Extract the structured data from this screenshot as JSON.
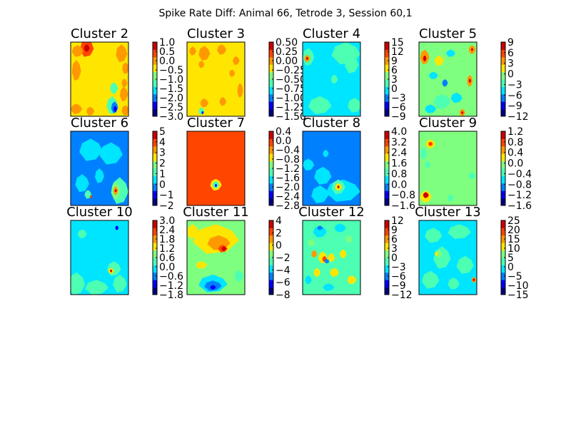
{
  "figure": {
    "title": "Spike Rate Diff: Animal 66, Tetrode 3, Session 60,1"
  },
  "chart_data": [
    {
      "type": "heatmap",
      "title": "Cluster 2",
      "colorbar_ticks": [
        "1.0",
        "0.5",
        "0.0",
        "−0.5",
        "−1.0",
        "−1.5",
        "−2.0",
        "−2.5",
        "−3.0"
      ],
      "background": 6,
      "blobs": [
        {
          "x": 0.28,
          "y": 0.08,
          "rx": 0.12,
          "ry": 0.12,
          "level": 8
        },
        {
          "x": 0.28,
          "y": 0.08,
          "rx": 0.05,
          "ry": 0.05,
          "level": 9
        },
        {
          "x": 0.12,
          "y": 0.12,
          "rx": 0.1,
          "ry": 0.08,
          "level": 7
        },
        {
          "x": 0.1,
          "y": 0.38,
          "rx": 0.08,
          "ry": 0.14,
          "level": 7
        },
        {
          "x": 0.88,
          "y": 0.15,
          "rx": 0.1,
          "ry": 0.12,
          "level": 7
        },
        {
          "x": 0.95,
          "y": 0.35,
          "rx": 0.06,
          "ry": 0.08,
          "level": 7
        },
        {
          "x": 0.92,
          "y": 0.7,
          "rx": 0.07,
          "ry": 0.1,
          "level": 7
        },
        {
          "x": 0.95,
          "y": 0.92,
          "rx": 0.07,
          "ry": 0.07,
          "level": 7
        },
        {
          "x": 0.1,
          "y": 0.9,
          "rx": 0.1,
          "ry": 0.07,
          "level": 7
        },
        {
          "x": 0.34,
          "y": 0.93,
          "rx": 0.07,
          "ry": 0.06,
          "level": 7
        },
        {
          "x": 0.93,
          "y": 0.55,
          "rx": 0.05,
          "ry": 0.06,
          "level": 7
        },
        {
          "x": 0.75,
          "y": 0.62,
          "rx": 0.07,
          "ry": 0.08,
          "level": 4
        },
        {
          "x": 0.72,
          "y": 0.85,
          "rx": 0.1,
          "ry": 0.12,
          "level": 4
        },
        {
          "x": 0.76,
          "y": 0.88,
          "rx": 0.06,
          "ry": 0.08,
          "level": 2
        },
        {
          "x": 0.77,
          "y": 0.9,
          "rx": 0.03,
          "ry": 0.04,
          "level": 1
        }
      ]
    },
    {
      "type": "heatmap",
      "title": "Cluster 3",
      "colorbar_ticks": [
        "0.50",
        "0.25",
        "0.00",
        "−0.25",
        "−0.50",
        "−0.75",
        "−1.00",
        "−1.25",
        "−1.50"
      ],
      "background": 6,
      "blobs": [
        {
          "x": 0.3,
          "y": 0.15,
          "rx": 0.1,
          "ry": 0.1,
          "level": 7
        },
        {
          "x": 0.1,
          "y": 0.12,
          "rx": 0.06,
          "ry": 0.06,
          "level": 7
        },
        {
          "x": 0.25,
          "y": 0.3,
          "rx": 0.05,
          "ry": 0.05,
          "level": 7
        },
        {
          "x": 0.6,
          "y": 0.1,
          "rx": 0.08,
          "ry": 0.07,
          "level": 7
        },
        {
          "x": 0.85,
          "y": 0.25,
          "rx": 0.06,
          "ry": 0.06,
          "level": 7
        },
        {
          "x": 0.78,
          "y": 0.42,
          "rx": 0.05,
          "ry": 0.05,
          "level": 7
        },
        {
          "x": 0.62,
          "y": 0.8,
          "rx": 0.06,
          "ry": 0.06,
          "level": 7
        },
        {
          "x": 0.92,
          "y": 0.65,
          "rx": 0.05,
          "ry": 0.1,
          "level": 7
        },
        {
          "x": 0.3,
          "y": 0.82,
          "rx": 0.07,
          "ry": 0.06,
          "level": 7
        },
        {
          "x": 0.25,
          "y": 0.93,
          "rx": 0.05,
          "ry": 0.05,
          "level": 4
        },
        {
          "x": 0.27,
          "y": 0.95,
          "rx": 0.02,
          "ry": 0.02,
          "level": 1
        }
      ]
    },
    {
      "type": "heatmap",
      "title": "Cluster 4",
      "colorbar_ticks": [
        "15",
        "12",
        "9",
        "6",
        "3",
        "0",
        "−3",
        "−6",
        "−9"
      ],
      "background": 3,
      "blobs": [
        {
          "x": 0.1,
          "y": 0.2,
          "rx": 0.1,
          "ry": 0.12,
          "level": 4
        },
        {
          "x": 0.08,
          "y": 0.22,
          "rx": 0.05,
          "ry": 0.05,
          "level": 7
        },
        {
          "x": 0.08,
          "y": 0.22,
          "rx": 0.02,
          "ry": 0.02,
          "level": 9
        },
        {
          "x": 0.75,
          "y": 0.15,
          "rx": 0.25,
          "ry": 0.15,
          "level": 4
        },
        {
          "x": 0.85,
          "y": 0.3,
          "rx": 0.12,
          "ry": 0.12,
          "level": 4
        },
        {
          "x": 0.3,
          "y": 0.85,
          "rx": 0.2,
          "ry": 0.12,
          "level": 4
        },
        {
          "x": 0.9,
          "y": 0.85,
          "rx": 0.12,
          "ry": 0.1,
          "level": 4
        },
        {
          "x": 0.55,
          "y": 0.5,
          "rx": 0.06,
          "ry": 0.06,
          "level": 4
        }
      ]
    },
    {
      "type": "heatmap",
      "title": "Cluster 5",
      "colorbar_ticks": [
        "9",
        "6",
        "3",
        "0",
        "−3",
        "−6",
        "−9",
        "−12"
      ],
      "background": 5,
      "blobs": [
        {
          "x": 0.1,
          "y": 0.2,
          "rx": 0.08,
          "ry": 0.1,
          "level": 7
        },
        {
          "x": 0.1,
          "y": 0.22,
          "rx": 0.03,
          "ry": 0.04,
          "level": 9
        },
        {
          "x": 0.92,
          "y": 0.1,
          "rx": 0.06,
          "ry": 0.06,
          "level": 7
        },
        {
          "x": 0.92,
          "y": 0.1,
          "rx": 0.02,
          "ry": 0.02,
          "level": 9
        },
        {
          "x": 0.88,
          "y": 0.52,
          "rx": 0.05,
          "ry": 0.08,
          "level": 7
        },
        {
          "x": 0.88,
          "y": 0.52,
          "rx": 0.02,
          "ry": 0.03,
          "level": 9
        },
        {
          "x": 0.75,
          "y": 0.95,
          "rx": 0.05,
          "ry": 0.05,
          "level": 7
        },
        {
          "x": 0.75,
          "y": 0.95,
          "rx": 0.02,
          "ry": 0.02,
          "level": 9
        },
        {
          "x": 0.45,
          "y": 0.55,
          "rx": 0.05,
          "ry": 0.05,
          "level": 2
        },
        {
          "x": 0.2,
          "y": 0.9,
          "rx": 0.1,
          "ry": 0.06,
          "level": 3
        },
        {
          "x": 0.25,
          "y": 0.45,
          "rx": 0.08,
          "ry": 0.05,
          "level": 3
        },
        {
          "x": 0.55,
          "y": 0.15,
          "rx": 0.08,
          "ry": 0.05,
          "level": 3
        },
        {
          "x": 0.65,
          "y": 0.75,
          "rx": 0.1,
          "ry": 0.07,
          "level": 3
        },
        {
          "x": 0.4,
          "y": 0.8,
          "rx": 0.15,
          "ry": 0.1,
          "level": 4
        },
        {
          "x": 0.35,
          "y": 0.25,
          "rx": 0.08,
          "ry": 0.07,
          "level": 6
        }
      ]
    },
    {
      "type": "heatmap",
      "title": "Cluster 6",
      "colorbar_ticks": [
        "5",
        "4",
        "3",
        "2",
        "1",
        "0",
        "−1",
        "−2"
      ],
      "background": 2,
      "blobs": [
        {
          "x": 0.35,
          "y": 0.25,
          "rx": 0.2,
          "ry": 0.15,
          "level": 3
        },
        {
          "x": 0.7,
          "y": 0.3,
          "rx": 0.2,
          "ry": 0.15,
          "level": 3
        },
        {
          "x": 0.2,
          "y": 0.7,
          "rx": 0.12,
          "ry": 0.12,
          "level": 3
        },
        {
          "x": 0.5,
          "y": 0.6,
          "rx": 0.08,
          "ry": 0.1,
          "level": 3
        },
        {
          "x": 0.85,
          "y": 0.8,
          "rx": 0.15,
          "ry": 0.18,
          "level": 4
        },
        {
          "x": 0.78,
          "y": 0.8,
          "rx": 0.08,
          "ry": 0.12,
          "level": 5
        },
        {
          "x": 0.78,
          "y": 0.8,
          "rx": 0.04,
          "ry": 0.06,
          "level": 7
        },
        {
          "x": 0.78,
          "y": 0.8,
          "rx": 0.02,
          "ry": 0.02,
          "level": 9
        },
        {
          "x": 0.3,
          "y": 0.85,
          "rx": 0.06,
          "ry": 0.06,
          "level": 4
        },
        {
          "x": 0.35,
          "y": 0.88,
          "rx": 0.02,
          "ry": 0.02,
          "level": 8
        }
      ]
    },
    {
      "type": "heatmap",
      "title": "Cluster 7",
      "colorbar_ticks": [
        "0.4",
        "0.0",
        "−0.4",
        "−0.8",
        "−1.2",
        "−1.6",
        "−2.0",
        "−2.4",
        "−2.8"
      ],
      "background": 8,
      "blobs": [
        {
          "x": 0.5,
          "y": 0.72,
          "rx": 0.1,
          "ry": 0.08,
          "level": 6
        },
        {
          "x": 0.5,
          "y": 0.72,
          "rx": 0.06,
          "ry": 0.05,
          "level": 4
        },
        {
          "x": 0.5,
          "y": 0.73,
          "rx": 0.02,
          "ry": 0.02,
          "level": 1
        }
      ]
    },
    {
      "type": "heatmap",
      "title": "Cluster 8",
      "colorbar_ticks": [
        "4.0",
        "3.2",
        "2.4",
        "1.6",
        "0.8",
        "0.0",
        "−0.8",
        "−1.6"
      ],
      "background": 2,
      "blobs": [
        {
          "x": 0.1,
          "y": 0.45,
          "rx": 0.1,
          "ry": 0.08,
          "level": 3
        },
        {
          "x": 0.35,
          "y": 0.6,
          "rx": 0.15,
          "ry": 0.12,
          "level": 3
        },
        {
          "x": 0.3,
          "y": 0.85,
          "rx": 0.15,
          "ry": 0.12,
          "level": 3
        },
        {
          "x": 0.7,
          "y": 0.8,
          "rx": 0.3,
          "ry": 0.15,
          "level": 3
        },
        {
          "x": 0.62,
          "y": 0.75,
          "rx": 0.12,
          "ry": 0.1,
          "level": 4
        },
        {
          "x": 0.62,
          "y": 0.75,
          "rx": 0.06,
          "ry": 0.05,
          "level": 6
        },
        {
          "x": 0.62,
          "y": 0.75,
          "rx": 0.02,
          "ry": 0.02,
          "level": 9
        },
        {
          "x": 0.4,
          "y": 0.3,
          "rx": 0.05,
          "ry": 0.05,
          "level": 3
        }
      ]
    },
    {
      "type": "heatmap",
      "title": "Cluster 9",
      "colorbar_ticks": [
        "1.2",
        "0.8",
        "0.4",
        "0.0",
        "−0.4",
        "−0.8",
        "−1.2",
        "−1.6"
      ],
      "background": 5,
      "blobs": [
        {
          "x": 0.2,
          "y": 0.17,
          "rx": 0.08,
          "ry": 0.06,
          "level": 6
        },
        {
          "x": 0.2,
          "y": 0.17,
          "rx": 0.04,
          "ry": 0.03,
          "level": 8
        },
        {
          "x": 0.12,
          "y": 0.88,
          "rx": 0.1,
          "ry": 0.08,
          "level": 6
        },
        {
          "x": 0.12,
          "y": 0.86,
          "rx": 0.05,
          "ry": 0.04,
          "level": 9
        },
        {
          "x": 0.08,
          "y": 0.3,
          "rx": 0.06,
          "ry": 0.08,
          "level": 4
        },
        {
          "x": 0.15,
          "y": 0.45,
          "rx": 0.05,
          "ry": 0.05,
          "level": 4
        },
        {
          "x": 0.92,
          "y": 0.6,
          "rx": 0.06,
          "ry": 0.05,
          "level": 4
        },
        {
          "x": 0.55,
          "y": 0.9,
          "rx": 0.05,
          "ry": 0.05,
          "level": 4
        }
      ]
    },
    {
      "type": "heatmap",
      "title": "Cluster 10",
      "colorbar_ticks": [
        "3.0",
        "2.4",
        "1.8",
        "1.2",
        "0.6",
        "0.0",
        "−0.6",
        "−1.2",
        "−1.8"
      ],
      "background": 3,
      "blobs": [
        {
          "x": 0.2,
          "y": 0.18,
          "rx": 0.08,
          "ry": 0.06,
          "level": 4
        },
        {
          "x": 0.8,
          "y": 0.1,
          "rx": 0.03,
          "ry": 0.03,
          "level": 1
        },
        {
          "x": 0.1,
          "y": 0.85,
          "rx": 0.15,
          "ry": 0.15,
          "level": 4
        },
        {
          "x": 0.45,
          "y": 0.9,
          "rx": 0.2,
          "ry": 0.1,
          "level": 4
        },
        {
          "x": 0.85,
          "y": 0.85,
          "rx": 0.12,
          "ry": 0.12,
          "level": 4
        },
        {
          "x": 0.75,
          "y": 0.65,
          "rx": 0.12,
          "ry": 0.1,
          "level": 4
        },
        {
          "x": 0.7,
          "y": 0.68,
          "rx": 0.05,
          "ry": 0.04,
          "level": 6
        },
        {
          "x": 0.7,
          "y": 0.68,
          "rx": 0.02,
          "ry": 0.02,
          "level": 9
        }
      ]
    },
    {
      "type": "heatmap",
      "title": "Cluster 11",
      "colorbar_ticks": [
        "4",
        "2",
        "0",
        "−2",
        "−4",
        "−6",
        "−8"
      ],
      "background": 5,
      "blobs": [
        {
          "x": 0.5,
          "y": 0.25,
          "rx": 0.4,
          "ry": 0.2,
          "level": 6
        },
        {
          "x": 0.55,
          "y": 0.3,
          "rx": 0.2,
          "ry": 0.1,
          "level": 7
        },
        {
          "x": 0.62,
          "y": 0.38,
          "rx": 0.08,
          "ry": 0.05,
          "level": 8
        },
        {
          "x": 0.64,
          "y": 0.38,
          "rx": 0.04,
          "ry": 0.03,
          "level": 9
        },
        {
          "x": 0.1,
          "y": 0.15,
          "rx": 0.1,
          "ry": 0.1,
          "level": 6
        },
        {
          "x": 0.25,
          "y": 0.6,
          "rx": 0.1,
          "ry": 0.05,
          "level": 6
        },
        {
          "x": 0.45,
          "y": 0.85,
          "rx": 0.25,
          "ry": 0.12,
          "level": 3
        },
        {
          "x": 0.45,
          "y": 0.88,
          "rx": 0.15,
          "ry": 0.07,
          "level": 2
        },
        {
          "x": 0.45,
          "y": 0.9,
          "rx": 0.05,
          "ry": 0.03,
          "level": 1
        },
        {
          "x": 0.9,
          "y": 0.75,
          "rx": 0.08,
          "ry": 0.08,
          "level": 4
        }
      ]
    },
    {
      "type": "heatmap",
      "title": "Cluster 12",
      "colorbar_ticks": [
        "12",
        "9",
        "6",
        "3",
        "0",
        "−3",
        "−6",
        "−9",
        "−12"
      ],
      "background": 4,
      "blobs": [
        {
          "x": 0.3,
          "y": 0.15,
          "rx": 0.12,
          "ry": 0.08,
          "level": 3
        },
        {
          "x": 0.3,
          "y": 0.1,
          "rx": 0.05,
          "ry": 0.03,
          "level": 2
        },
        {
          "x": 0.65,
          "y": 0.1,
          "rx": 0.1,
          "ry": 0.06,
          "level": 3
        },
        {
          "x": 0.35,
          "y": 0.5,
          "rx": 0.08,
          "ry": 0.08,
          "level": 6
        },
        {
          "x": 0.38,
          "y": 0.52,
          "rx": 0.04,
          "ry": 0.04,
          "level": 8
        },
        {
          "x": 0.5,
          "y": 0.5,
          "rx": 0.06,
          "ry": 0.06,
          "level": 6
        },
        {
          "x": 0.55,
          "y": 0.7,
          "rx": 0.08,
          "ry": 0.06,
          "level": 6
        },
        {
          "x": 0.2,
          "y": 0.45,
          "rx": 0.05,
          "ry": 0.05,
          "level": 7
        },
        {
          "x": 0.25,
          "y": 0.7,
          "rx": 0.06,
          "ry": 0.06,
          "level": 6
        },
        {
          "x": 0.7,
          "y": 0.45,
          "rx": 0.06,
          "ry": 0.06,
          "level": 6
        },
        {
          "x": 0.85,
          "y": 0.8,
          "rx": 0.08,
          "ry": 0.06,
          "level": 6
        },
        {
          "x": 0.1,
          "y": 0.8,
          "rx": 0.06,
          "ry": 0.06,
          "level": 3
        },
        {
          "x": 0.45,
          "y": 0.9,
          "rx": 0.1,
          "ry": 0.05,
          "level": 3
        },
        {
          "x": 0.42,
          "y": 0.55,
          "rx": 0.04,
          "ry": 0.03,
          "level": 2
        },
        {
          "x": 0.8,
          "y": 0.25,
          "rx": 0.06,
          "ry": 0.05,
          "level": 5
        },
        {
          "x": 0.15,
          "y": 0.3,
          "rx": 0.06,
          "ry": 0.05,
          "level": 5
        }
      ]
    },
    {
      "type": "heatmap",
      "title": "Cluster 13",
      "colorbar_ticks": [
        "25",
        "20",
        "15",
        "10",
        "5",
        "0",
        "−5",
        "−10",
        "−15"
      ],
      "background": 3,
      "blobs": [
        {
          "x": 0.25,
          "y": 0.2,
          "rx": 0.15,
          "ry": 0.1,
          "level": 4
        },
        {
          "x": 0.7,
          "y": 0.15,
          "rx": 0.2,
          "ry": 0.1,
          "level": 4
        },
        {
          "x": 0.4,
          "y": 0.5,
          "rx": 0.15,
          "ry": 0.15,
          "level": 4
        },
        {
          "x": 0.8,
          "y": 0.6,
          "rx": 0.15,
          "ry": 0.12,
          "level": 4
        },
        {
          "x": 0.2,
          "y": 0.8,
          "rx": 0.15,
          "ry": 0.12,
          "level": 4
        },
        {
          "x": 0.6,
          "y": 0.85,
          "rx": 0.1,
          "ry": 0.08,
          "level": 4
        },
        {
          "x": 0.95,
          "y": 0.8,
          "rx": 0.04,
          "ry": 0.04,
          "level": 7
        },
        {
          "x": 0.95,
          "y": 0.8,
          "rx": 0.02,
          "ry": 0.02,
          "level": 9
        },
        {
          "x": 0.35,
          "y": 0.45,
          "rx": 0.05,
          "ry": 0.05,
          "level": 5
        },
        {
          "x": 0.3,
          "y": 0.45,
          "rx": 0.03,
          "ry": 0.03,
          "level": 6
        }
      ]
    }
  ]
}
